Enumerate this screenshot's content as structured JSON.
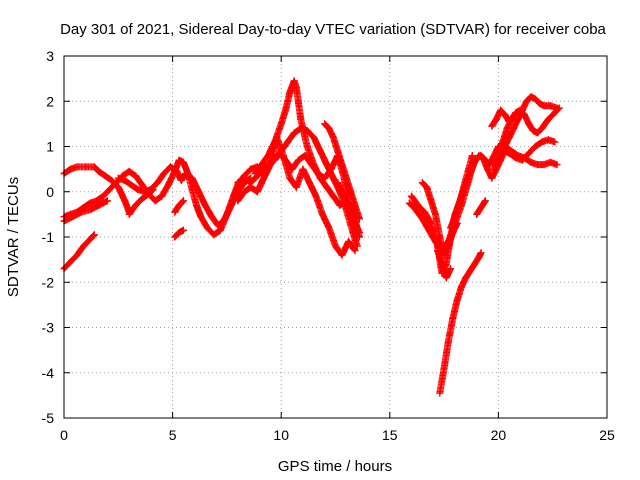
{
  "chart_data": {
    "type": "scatter",
    "title": "Day 301 of 2021, Sidereal Day-to-day VTEC variation (SDTVAR) for receiver coba",
    "xlabel": "GPS time / hours",
    "ylabel": "SDTVAR / TECUs",
    "xlim": [
      0,
      25
    ],
    "ylim": [
      -5,
      3
    ],
    "xticks": [
      "0",
      "5",
      "10",
      "15",
      "20",
      "25"
    ],
    "yticks": [
      "3",
      "2",
      "1",
      "0",
      "-1",
      "-2",
      "-3",
      "-4",
      "-5"
    ],
    "xtick_values": [
      0,
      5,
      10,
      15,
      20,
      25
    ],
    "ytick_values": [
      3,
      2,
      1,
      0,
      -1,
      -2,
      -3,
      -4,
      -5
    ],
    "grid": true,
    "marker": "+",
    "color": "#ff0000",
    "series": [
      {
        "values": [
          [
            0.0,
            0.4
          ],
          [
            0.3,
            0.5
          ],
          [
            0.6,
            0.55
          ],
          [
            1.0,
            0.55
          ],
          [
            1.4,
            0.55
          ],
          [
            1.6,
            0.45
          ],
          [
            1.9,
            0.35
          ],
          [
            2.2,
            0.25
          ],
          [
            2.5,
            0.1
          ],
          [
            2.8,
            -0.2
          ],
          [
            3.0,
            -0.45
          ]
        ]
      },
      {
        "values": [
          [
            0.0,
            -0.55
          ],
          [
            0.3,
            -0.5
          ],
          [
            0.6,
            -0.45
          ],
          [
            0.9,
            -0.35
          ],
          [
            1.2,
            -0.25
          ],
          [
            1.5,
            -0.2
          ],
          [
            1.8,
            -0.1
          ],
          [
            2.1,
            0.05
          ],
          [
            2.4,
            0.2
          ],
          [
            2.7,
            0.35
          ],
          [
            3.0,
            0.45
          ],
          [
            3.3,
            0.35
          ],
          [
            3.6,
            0.15
          ],
          [
            3.9,
            -0.05
          ],
          [
            4.2,
            -0.2
          ],
          [
            4.5,
            -0.1
          ],
          [
            4.8,
            0.15
          ],
          [
            5.1,
            0.45
          ],
          [
            5.3,
            0.7
          ],
          [
            5.5,
            0.65
          ],
          [
            5.7,
            0.4
          ],
          [
            5.9,
            0.05
          ],
          [
            6.1,
            -0.3
          ],
          [
            6.3,
            -0.55
          ],
          [
            6.6,
            -0.8
          ],
          [
            6.9,
            -0.95
          ],
          [
            7.2,
            -0.85
          ],
          [
            7.5,
            -0.5
          ],
          [
            7.8,
            -0.1
          ],
          [
            8.0,
            0.15
          ],
          [
            8.3,
            0.35
          ],
          [
            8.6,
            0.5
          ],
          [
            8.9,
            0.55
          ]
        ]
      },
      {
        "values": [
          [
            0.0,
            -0.65
          ],
          [
            0.4,
            -0.55
          ],
          [
            0.8,
            -0.45
          ],
          [
            1.2,
            -0.4
          ],
          [
            1.6,
            -0.3
          ],
          [
            2.0,
            -0.2
          ]
        ]
      },
      {
        "values": [
          [
            0.0,
            -1.7
          ],
          [
            0.3,
            -1.55
          ],
          [
            0.6,
            -1.4
          ],
          [
            0.9,
            -1.2
          ],
          [
            1.2,
            -1.05
          ],
          [
            1.4,
            -0.95
          ]
        ]
      },
      {
        "values": [
          [
            2.5,
            0.3
          ],
          [
            2.8,
            0.25
          ],
          [
            3.1,
            0.15
          ],
          [
            3.4,
            0.05
          ],
          [
            3.7,
            0.0
          ],
          [
            4.0,
            0.05
          ],
          [
            4.3,
            0.2
          ],
          [
            4.6,
            0.4
          ],
          [
            4.9,
            0.55
          ],
          [
            5.2,
            0.45
          ],
          [
            5.4,
            0.25
          ],
          [
            5.6,
            0.4
          ],
          [
            5.9,
            0.3
          ],
          [
            6.2,
            0.0
          ],
          [
            6.5,
            -0.3
          ],
          [
            6.8,
            -0.55
          ],
          [
            7.1,
            -0.75
          ],
          [
            7.4,
            -0.6
          ],
          [
            7.7,
            -0.3
          ],
          [
            8.0,
            0.0
          ],
          [
            8.3,
            0.2
          ],
          [
            8.6,
            0.3
          ]
        ]
      },
      {
        "values": [
          [
            3.0,
            -0.5
          ],
          [
            3.3,
            -0.3
          ],
          [
            3.6,
            -0.15
          ],
          [
            3.9,
            -0.05
          ],
          [
            4.1,
            0.05
          ]
        ]
      },
      {
        "values": [
          [
            5.1,
            -1.0
          ],
          [
            5.3,
            -0.9
          ],
          [
            5.5,
            -0.85
          ]
        ]
      },
      {
        "values": [
          [
            5.1,
            -0.45
          ],
          [
            5.3,
            -0.3
          ],
          [
            5.5,
            -0.2
          ]
        ]
      },
      {
        "values": [
          [
            8.8,
            0.4
          ],
          [
            9.1,
            0.6
          ],
          [
            9.4,
            0.8
          ],
          [
            9.7,
            1.1
          ],
          [
            10.0,
            1.5
          ],
          [
            10.2,
            1.8
          ],
          [
            10.4,
            2.2
          ],
          [
            10.6,
            2.45
          ],
          [
            10.7,
            2.3
          ],
          [
            10.9,
            1.6
          ],
          [
            11.2,
            1.0
          ],
          [
            11.5,
            0.6
          ],
          [
            11.8,
            0.3
          ],
          [
            12.1,
            0.1
          ],
          [
            12.4,
            -0.1
          ],
          [
            12.7,
            -0.3
          ],
          [
            13.0,
            -0.2
          ],
          [
            13.3,
            -0.4
          ],
          [
            13.6,
            -1.0
          ]
        ]
      },
      {
        "values": [
          [
            8.8,
            0.3
          ],
          [
            9.1,
            0.45
          ],
          [
            9.4,
            0.6
          ],
          [
            9.7,
            0.7
          ],
          [
            10.0,
            0.9
          ],
          [
            10.3,
            1.1
          ],
          [
            10.6,
            1.3
          ],
          [
            10.9,
            1.4
          ],
          [
            11.2,
            1.35
          ],
          [
            11.5,
            1.2
          ],
          [
            11.8,
            0.9
          ],
          [
            12.1,
            0.6
          ],
          [
            12.4,
            0.3
          ],
          [
            12.7,
            0.0
          ],
          [
            13.0,
            -0.4
          ],
          [
            13.3,
            -0.9
          ],
          [
            13.5,
            -1.2
          ]
        ]
      },
      {
        "values": [
          [
            8.0,
            0.2
          ],
          [
            8.3,
            0.3
          ],
          [
            8.6,
            0.2
          ],
          [
            9.0,
            0.4
          ],
          [
            9.3,
            0.5
          ],
          [
            9.6,
            0.7
          ],
          [
            9.9,
            0.85
          ],
          [
            10.2,
            0.7
          ],
          [
            10.5,
            0.5
          ],
          [
            10.8,
            0.7
          ],
          [
            11.1,
            0.8
          ],
          [
            11.4,
            0.6
          ],
          [
            11.7,
            0.4
          ],
          [
            12.0,
            0.3
          ],
          [
            12.3,
            0.5
          ],
          [
            12.6,
            0.8
          ],
          [
            12.9,
            0.3
          ],
          [
            13.2,
            -0.5
          ],
          [
            13.5,
            -1.0
          ]
        ]
      },
      {
        "values": [
          [
            8.0,
            -0.2
          ],
          [
            8.3,
            0.0
          ],
          [
            8.6,
            0.1
          ],
          [
            8.9,
            0.0
          ],
          [
            9.2,
            0.3
          ],
          [
            9.5,
            0.6
          ],
          [
            9.8,
            1.2
          ],
          [
            10.1,
            0.8
          ],
          [
            10.4,
            0.3
          ],
          [
            10.7,
            0.1
          ],
          [
            11.0,
            0.5
          ],
          [
            11.3,
            0.2
          ],
          [
            11.6,
            -0.1
          ],
          [
            11.9,
            -0.5
          ],
          [
            12.2,
            -0.8
          ],
          [
            12.5,
            -1.2
          ],
          [
            12.8,
            -1.4
          ],
          [
            13.1,
            -1.1
          ],
          [
            13.4,
            -1.3
          ]
        ]
      },
      {
        "values": [
          [
            12.0,
            1.5
          ],
          [
            12.2,
            1.4
          ],
          [
            12.4,
            1.2
          ],
          [
            12.6,
            0.9
          ],
          [
            12.8,
            0.6
          ],
          [
            13.0,
            0.3
          ],
          [
            13.2,
            0.0
          ],
          [
            13.4,
            -0.3
          ],
          [
            13.6,
            -0.6
          ]
        ]
      },
      {
        "values": [
          [
            12.6,
            0.2
          ],
          [
            12.8,
            0.0
          ],
          [
            13.0,
            -0.3
          ],
          [
            13.2,
            -0.5
          ],
          [
            13.4,
            -0.7
          ],
          [
            13.6,
            -0.9
          ]
        ]
      },
      {
        "values": [
          [
            16.0,
            -0.1
          ],
          [
            16.3,
            -0.3
          ],
          [
            16.6,
            -0.45
          ],
          [
            16.9,
            -0.7
          ],
          [
            17.2,
            -1.2
          ],
          [
            17.4,
            -1.8
          ],
          [
            17.6,
            -1.6
          ],
          [
            17.8,
            -1.0
          ],
          [
            18.0,
            -0.5
          ],
          [
            18.3,
            -0.1
          ],
          [
            18.6,
            0.3
          ],
          [
            18.9,
            0.65
          ],
          [
            19.1,
            0.8
          ],
          [
            19.3,
            0.75
          ],
          [
            19.5,
            0.5
          ],
          [
            19.7,
            0.3
          ],
          [
            19.9,
            0.5
          ],
          [
            20.1,
            0.7
          ],
          [
            20.3,
            0.9
          ],
          [
            20.5,
            0.85
          ],
          [
            20.8,
            0.75
          ],
          [
            21.1,
            0.7
          ],
          [
            21.4,
            0.85
          ],
          [
            21.7,
            1.0
          ],
          [
            22.0,
            1.1
          ],
          [
            22.3,
            1.15
          ],
          [
            22.6,
            1.1
          ]
        ]
      },
      {
        "values": [
          [
            15.9,
            -0.25
          ],
          [
            16.2,
            -0.4
          ],
          [
            16.5,
            -0.6
          ],
          [
            16.8,
            -0.85
          ],
          [
            17.1,
            -1.1
          ],
          [
            17.4,
            -1.3
          ],
          [
            17.7,
            -1.1
          ],
          [
            18.0,
            -0.7
          ],
          [
            18.3,
            -0.3
          ],
          [
            18.6,
            0.2
          ],
          [
            18.9,
            0.7
          ],
          [
            19.2,
            0.8
          ],
          [
            19.4,
            0.7
          ],
          [
            19.6,
            0.6
          ],
          [
            19.8,
            0.8
          ],
          [
            20.0,
            1.0
          ],
          [
            20.3,
            1.0
          ],
          [
            20.6,
            0.9
          ],
          [
            20.9,
            0.8
          ],
          [
            21.2,
            0.75
          ],
          [
            21.5,
            0.65
          ],
          [
            21.8,
            0.6
          ],
          [
            22.1,
            0.6
          ],
          [
            22.4,
            0.65
          ],
          [
            22.7,
            0.6
          ]
        ]
      },
      {
        "values": [
          [
            16.5,
            0.2
          ],
          [
            16.7,
            0.1
          ],
          [
            16.9,
            -0.2
          ],
          [
            17.1,
            -0.5
          ],
          [
            17.3,
            -1.0
          ],
          [
            17.5,
            -1.4
          ],
          [
            17.7,
            -1.2
          ],
          [
            17.9,
            -0.9
          ],
          [
            18.1,
            -0.7
          ]
        ]
      },
      {
        "values": [
          [
            17.2,
            -1.3
          ],
          [
            17.4,
            -1.6
          ],
          [
            17.6,
            -1.9
          ],
          [
            17.8,
            -1.7
          ]
        ]
      },
      {
        "values": [
          [
            17.8,
            -0.8
          ],
          [
            18.0,
            -0.55
          ],
          [
            18.2,
            -0.25
          ],
          [
            18.4,
            0.1
          ],
          [
            18.6,
            0.45
          ],
          [
            18.8,
            0.8
          ]
        ]
      },
      {
        "values": [
          [
            17.7,
            -1.1
          ],
          [
            17.9,
            -0.9
          ],
          [
            18.1,
            -0.7
          ]
        ]
      },
      {
        "values": [
          [
            17.3,
            -4.45
          ],
          [
            17.5,
            -3.9
          ],
          [
            17.7,
            -3.3
          ],
          [
            17.9,
            -2.8
          ],
          [
            18.1,
            -2.4
          ],
          [
            18.3,
            -2.1
          ],
          [
            18.5,
            -1.9
          ],
          [
            18.7,
            -1.75
          ],
          [
            18.9,
            -1.6
          ],
          [
            19.1,
            -1.45
          ],
          [
            19.2,
            -1.35
          ]
        ]
      },
      {
        "values": [
          [
            19.0,
            -0.5
          ],
          [
            19.2,
            -0.35
          ],
          [
            19.4,
            -0.2
          ]
        ]
      },
      {
        "values": [
          [
            19.8,
            0.5
          ],
          [
            20.0,
            0.8
          ],
          [
            20.2,
            1.1
          ],
          [
            20.4,
            1.4
          ],
          [
            20.6,
            1.6
          ],
          [
            20.8,
            1.75
          ],
          [
            21.0,
            1.8
          ],
          [
            21.2,
            1.7
          ],
          [
            21.4,
            1.5
          ],
          [
            21.6,
            1.35
          ],
          [
            21.8,
            1.3
          ],
          [
            22.0,
            1.4
          ],
          [
            22.3,
            1.6
          ],
          [
            22.6,
            1.75
          ],
          [
            22.8,
            1.85
          ]
        ]
      },
      {
        "values": [
          [
            19.7,
            1.45
          ],
          [
            19.9,
            1.6
          ],
          [
            20.1,
            1.8
          ],
          [
            20.3,
            1.7
          ],
          [
            20.5,
            1.55
          ]
        ]
      },
      {
        "values": [
          [
            20.3,
            1.0
          ],
          [
            20.5,
            1.2
          ],
          [
            20.7,
            1.4
          ],
          [
            20.9,
            1.6
          ],
          [
            21.1,
            1.8
          ],
          [
            21.3,
            2.0
          ],
          [
            21.5,
            2.1
          ],
          [
            21.7,
            2.05
          ],
          [
            21.9,
            1.95
          ],
          [
            22.1,
            1.9
          ],
          [
            22.4,
            1.9
          ],
          [
            22.7,
            1.85
          ]
        ]
      }
    ]
  }
}
